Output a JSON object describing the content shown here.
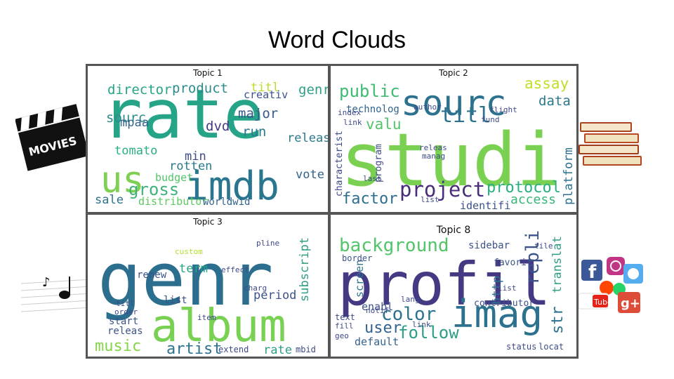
{
  "slide": {
    "title": "Word Clouds"
  },
  "side_icons": [
    {
      "name": "movies-clapperboard-icon",
      "label": "MOVIES"
    },
    {
      "name": "book-stack-icon"
    },
    {
      "name": "music-note-icon"
    },
    {
      "name": "social-media-logos-icon",
      "labels": [
        "f",
        "Tube",
        "g+"
      ]
    }
  ],
  "panels": [
    {
      "id": "topic-1",
      "title": "Topic 1",
      "words": [
        {
          "text": "rate",
          "size": 96,
          "color": "#26a488",
          "rot": 0
        },
        {
          "text": "us",
          "size": 52,
          "color": "#7fcf52",
          "rot": 0
        },
        {
          "text": "imdb",
          "size": 56,
          "color": "#2a768e",
          "rot": 0
        },
        {
          "text": "gross",
          "size": 24,
          "color": "#41b27a",
          "rot": 0
        },
        {
          "text": "director",
          "size": 19,
          "color": "#26a488",
          "rot": 0
        },
        {
          "text": "product",
          "size": 19,
          "color": "#2c8b8c",
          "rot": 0
        },
        {
          "text": "titl",
          "size": 17,
          "color": "#b8dd2c",
          "rot": 0
        },
        {
          "text": "genr",
          "size": 19,
          "color": "#2e9e86",
          "rot": 0
        },
        {
          "text": "creativ",
          "size": 15,
          "color": "#3b528b",
          "rot": 0
        },
        {
          "text": "major",
          "size": 19,
          "color": "#38598c",
          "rot": 0
        },
        {
          "text": "sourc",
          "size": 19,
          "color": "#2c8b8c",
          "rot": 0
        },
        {
          "text": "mpaa",
          "size": 17,
          "color": "#33638d",
          "rot": 0
        },
        {
          "text": "dvd",
          "size": 19,
          "color": "#453882",
          "rot": 0
        },
        {
          "text": "run",
          "size": 19,
          "color": "#2a788e",
          "rot": 0
        },
        {
          "text": "releas",
          "size": 17,
          "color": "#2a788e",
          "rot": 0
        },
        {
          "text": "tomato",
          "size": 17,
          "color": "#2ab07f",
          "rot": 0
        },
        {
          "text": "min",
          "size": 17,
          "color": "#3e4a89",
          "rot": 0
        },
        {
          "text": "rotten",
          "size": 17,
          "color": "#2a788e",
          "rot": 0
        },
        {
          "text": "budget",
          "size": 15,
          "color": "#52c569",
          "rot": 0
        },
        {
          "text": "vote",
          "size": 17,
          "color": "#33638d",
          "rot": 0
        },
        {
          "text": "sale",
          "size": 17,
          "color": "#2c728e",
          "rot": 0
        },
        {
          "text": "distributor",
          "size": 15,
          "color": "#5ec962",
          "rot": 0
        },
        {
          "text": "worldwid",
          "size": 14,
          "color": "#33638d",
          "rot": 0
        }
      ]
    },
    {
      "id": "topic-2",
      "title": "Topic 2",
      "words": [
        {
          "text": "studi",
          "size": 104,
          "color": "#7ad151",
          "rot": 0
        },
        {
          "text": "sourc",
          "size": 50,
          "color": "#2c728e",
          "rot": 0
        },
        {
          "text": "public",
          "size": 24,
          "color": "#3ebc74",
          "rot": 0
        },
        {
          "text": "titl",
          "size": 30,
          "color": "#2c728e",
          "rot": 0
        },
        {
          "text": "assay",
          "size": 21,
          "color": "#bddf26",
          "rot": 0
        },
        {
          "text": "data",
          "size": 19,
          "color": "#2a788e",
          "rot": 0
        },
        {
          "text": "technolog",
          "size": 14,
          "color": "#33638d",
          "rot": 0
        },
        {
          "text": "valu",
          "size": 21,
          "color": "#52c569",
          "rot": 0
        },
        {
          "text": "project",
          "size": 29,
          "color": "#472d7b",
          "rot": 0
        },
        {
          "text": "protocol",
          "size": 22,
          "color": "#2ab07f",
          "rot": 0
        },
        {
          "text": "access",
          "size": 18,
          "color": "#35b779",
          "rot": 0
        },
        {
          "text": "factor",
          "size": 22,
          "color": "#2e6e8e",
          "rot": 0
        },
        {
          "text": "identifi",
          "size": 15,
          "color": "#3b528b",
          "rot": 0
        },
        {
          "text": "platform",
          "size": 17,
          "color": "#2c728e",
          "rot": -90
        },
        {
          "text": "characterist",
          "size": 13,
          "color": "#3e4989",
          "rot": -90
        },
        {
          "text": "program",
          "size": 13,
          "color": "#3e4989",
          "rot": -90
        },
        {
          "text": "author",
          "size": 11,
          "color": "#3e4989",
          "rot": 0
        },
        {
          "text": "flight",
          "size": 11,
          "color": "#3e4989",
          "rot": 0
        },
        {
          "text": "fund",
          "size": 11,
          "color": "#3e4989",
          "rot": 0
        },
        {
          "text": "index",
          "size": 11,
          "color": "#3e4989",
          "rot": 0
        },
        {
          "text": "link",
          "size": 11,
          "color": "#3e4989",
          "rot": 0
        },
        {
          "text": "releas",
          "size": 11,
          "color": "#3e4989",
          "rot": 0
        },
        {
          "text": "manag",
          "size": 11,
          "color": "#3e4989",
          "rot": 0
        },
        {
          "text": "last",
          "size": 11,
          "color": "#3e4989",
          "rot": 0
        },
        {
          "text": "list",
          "size": 11,
          "color": "#3e4989",
          "rot": 0
        }
      ]
    },
    {
      "id": "topic-3",
      "title": "Topic 3",
      "words": [
        {
          "text": "genr",
          "size": 104,
          "color": "#2c6e8e",
          "rot": 0
        },
        {
          "text": "album",
          "size": 64,
          "color": "#78d152",
          "rot": 0
        },
        {
          "text": "music",
          "size": 22,
          "color": "#86d549",
          "rot": 0
        },
        {
          "text": "artist",
          "size": 22,
          "color": "#2c728e",
          "rot": 0
        },
        {
          "text": "rate",
          "size": 17,
          "color": "#2e9e86",
          "rot": 0
        },
        {
          "text": "term",
          "size": 17,
          "color": "#26a488",
          "rot": 0
        },
        {
          "text": "renew",
          "size": 14,
          "color": "#3b528b",
          "rot": 0
        },
        {
          "text": "period",
          "size": 17,
          "color": "#3b528b",
          "rot": 0
        },
        {
          "text": "list",
          "size": 14,
          "color": "#3b528b",
          "rot": 0
        },
        {
          "text": "start",
          "size": 14,
          "color": "#3b528b",
          "rot": 0
        },
        {
          "text": "releas",
          "size": 14,
          "color": "#3b528b",
          "rot": 0
        },
        {
          "text": "subscript",
          "size": 17,
          "color": "#2e9e86",
          "rot": -90
        },
        {
          "text": "effect",
          "size": 11,
          "color": "#3e4989",
          "rot": 0
        },
        {
          "text": "extend",
          "size": 12,
          "color": "#3e4989",
          "rot": 0
        },
        {
          "text": "mbid",
          "size": 12,
          "color": "#3e4989",
          "rot": 0
        },
        {
          "text": "pline",
          "size": 11,
          "color": "#3e4989",
          "rot": 0
        },
        {
          "text": "custom",
          "size": 11,
          "color": "#b5de2b",
          "rot": 0
        },
        {
          "text": "titl",
          "size": 11,
          "color": "#3e4989",
          "rot": 0
        },
        {
          "text": "order",
          "size": 11,
          "color": "#3e4989",
          "rot": 0
        },
        {
          "text": "item",
          "size": 11,
          "color": "#3e4989",
          "rot": 0
        },
        {
          "text": "charg",
          "size": 11,
          "color": "#3e4989",
          "rot": 0
        }
      ]
    },
    {
      "id": "topic-8",
      "title": "Topic 8",
      "words": [
        {
          "text": "profil",
          "size": 84,
          "color": "#443983",
          "rot": 0
        },
        {
          "text": "imag",
          "size": 54,
          "color": "#2c728e",
          "rot": 0
        },
        {
          "text": "background",
          "size": 26,
          "color": "#52c569",
          "rot": 0
        },
        {
          "text": "color",
          "size": 26,
          "color": "#2c728e",
          "rot": 0
        },
        {
          "text": "follow",
          "size": 24,
          "color": "#2e9e86",
          "rot": 0
        },
        {
          "text": "user",
          "size": 22,
          "color": "#33638d",
          "rot": 0
        },
        {
          "text": "sidebar",
          "size": 14,
          "color": "#3b528b",
          "rot": 0
        },
        {
          "text": "repli",
          "size": 26,
          "color": "#3b528b",
          "rot": -90
        },
        {
          "text": "translat",
          "size": 17,
          "color": "#2e9e86",
          "rot": -90
        },
        {
          "text": "str",
          "size": 22,
          "color": "#2c728e",
          "rot": -90
        },
        {
          "text": "screen",
          "size": 15,
          "color": "#2c728e",
          "rot": -90
        },
        {
          "text": "enabl",
          "size": 15,
          "color": "#3b528b",
          "rot": 0
        },
        {
          "text": "default",
          "size": 15,
          "color": "#33638d",
          "rot": 0
        },
        {
          "text": "contributor",
          "size": 13,
          "color": "#3b528b",
          "rot": 0
        },
        {
          "text": "http",
          "size": 17,
          "color": "#2c728e",
          "rot": -90
        },
        {
          "text": "favorit",
          "size": 13,
          "color": "#3b528b",
          "rot": 0
        },
        {
          "text": "border",
          "size": 12,
          "color": "#3b528b",
          "rot": 0
        },
        {
          "text": "list",
          "size": 11,
          "color": "#3e4989",
          "rot": 0
        },
        {
          "text": "link",
          "size": 11,
          "color": "#3e4989",
          "rot": 0
        },
        {
          "text": "tile",
          "size": 11,
          "color": "#3e4989",
          "rot": 0
        },
        {
          "text": "status",
          "size": 12,
          "color": "#3e4989",
          "rot": 0
        },
        {
          "text": "locat",
          "size": 12,
          "color": "#3e4989",
          "rot": 0
        },
        {
          "text": "fill",
          "size": 11,
          "color": "#3e4989",
          "rot": 0
        },
        {
          "text": "geo",
          "size": 11,
          "color": "#3e4989",
          "rot": 0
        },
        {
          "text": "lang",
          "size": 11,
          "color": "#3e4989",
          "rot": 0
        },
        {
          "text": "text",
          "size": 12,
          "color": "#3e4989",
          "rot": 0
        },
        {
          "text": "notif",
          "size": 11,
          "color": "#3e4989",
          "rot": 0
        }
      ]
    }
  ]
}
